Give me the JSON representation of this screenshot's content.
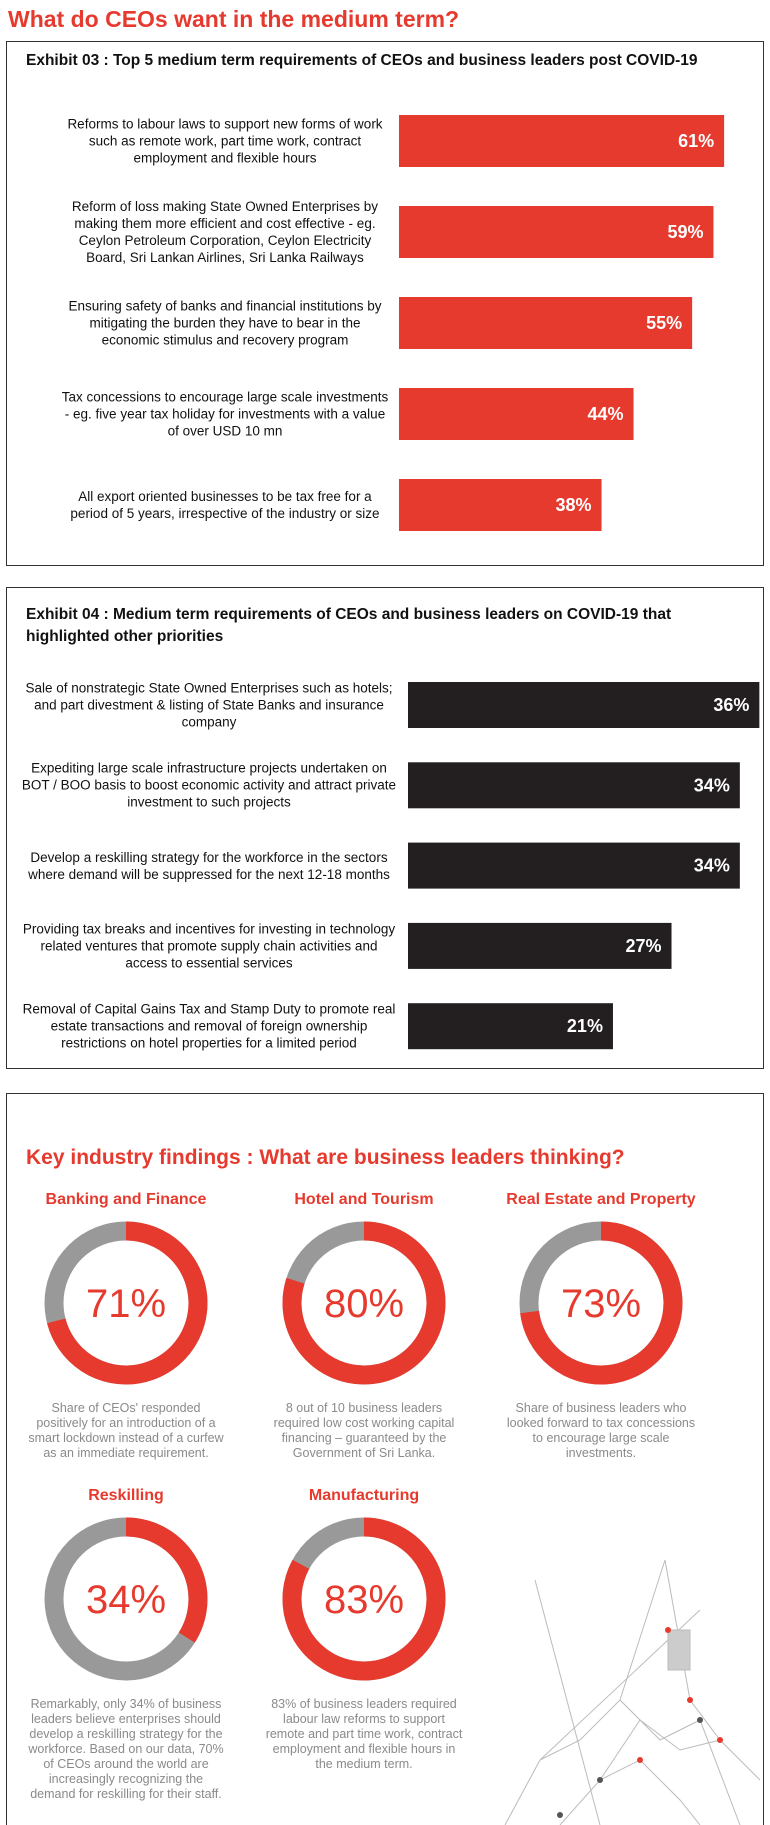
{
  "title": "What do CEOs want in the medium term?",
  "findings_title": "Key industry findings : What are business leaders thinking?",
  "chart_data": [
    {
      "type": "bar",
      "title": "Exhibit 03 : Top 5 medium term requirements of CEOs and business leaders post COVID-19",
      "categories": [
        "Reforms to labour laws to support new forms of work such as remote work, part time work, contract employment and flexible hours",
        "Reform of loss making State Owned Enterprises by making them more efficient and cost effective - eg. Ceylon Petroleum Corporation, Ceylon Electricity Board, Sri Lankan Airlines, Sri Lanka Railways",
        "Ensuring safety of banks and financial institutions by mitigating the burden they have to bear in the economic stimulus and recovery program",
        "Tax concessions to encourage large scale investments - eg. five year tax holiday for investments with a value of over USD 10 mn",
        "All export oriented businesses to be tax free for a period of 5 years, irrespective of the industry or size"
      ],
      "values": [
        61,
        59,
        55,
        44,
        38
      ],
      "value_labels": [
        "61%",
        "59%",
        "55%",
        "44%",
        "38%"
      ],
      "color": "#e63a2e"
    },
    {
      "type": "bar",
      "title": "Exhibit 04 : Medium term requirements of CEOs and business leaders on COVID-19 that highlighted other priorities",
      "categories": [
        "Sale of nonstrategic State Owned Enterprises such as hotels; and part divestment & listing of State Banks and insurance company",
        "Expediting large scale infrastructure projects undertaken on BOT / BOO basis to boost economic activity and attract private investment to such projects",
        "Develop a reskilling strategy for the workforce in the sectors where demand will be suppressed for the next 12-18 months",
        "Providing tax breaks and incentives for investing in technology related ventures that promote supply chain activities and access to essential services",
        "Removal of Capital Gains Tax and Stamp Duty to promote real estate transactions and removal of foreign ownership restrictions on hotel properties for a limited period"
      ],
      "values": [
        36,
        34,
        34,
        27,
        21
      ],
      "value_labels": [
        "36%",
        "34%",
        "34%",
        "27%",
        "21%"
      ],
      "color": "#231f20"
    },
    {
      "type": "donut",
      "title": "Banking and Finance",
      "values": [
        71
      ],
      "value_labels": [
        "71%"
      ],
      "color": "#e63a2e",
      "track_color": "#999999",
      "caption": "Share of CEOs' responded positively for an introduction of a smart lockdown instead of a curfew as an immediate requirement."
    },
    {
      "type": "donut",
      "title": "Hotel and Tourism",
      "values": [
        80
      ],
      "value_labels": [
        "80%"
      ],
      "color": "#e63a2e",
      "track_color": "#999999",
      "caption": "8 out of 10 business leaders required low cost working capital financing – guaranteed by the Government of Sri Lanka."
    },
    {
      "type": "donut",
      "title": "Real Estate and Property",
      "values": [
        73
      ],
      "value_labels": [
        "73%"
      ],
      "color": "#e63a2e",
      "track_color": "#999999",
      "caption": "Share of business leaders who looked forward to tax concessions to encourage large scale investments."
    },
    {
      "type": "donut",
      "title": "Reskilling",
      "values": [
        34
      ],
      "value_labels": [
        "34%"
      ],
      "color": "#e63a2e",
      "track_color": "#999999",
      "caption": "Remarkably, only 34% of business leaders believe enterprises should develop a reskilling strategy for the workforce. Based on our data, 70% of CEOs around the world are increasingly recognizing the demand for reskilling for their staff."
    },
    {
      "type": "donut",
      "title": "Manufacturing",
      "values": [
        83
      ],
      "value_labels": [
        "83%"
      ],
      "color": "#e63a2e",
      "track_color": "#999999",
      "caption": "83% of business leaders required labour law reforms to support remote and part time work, contract employment and flexible hours in the medium term."
    }
  ]
}
